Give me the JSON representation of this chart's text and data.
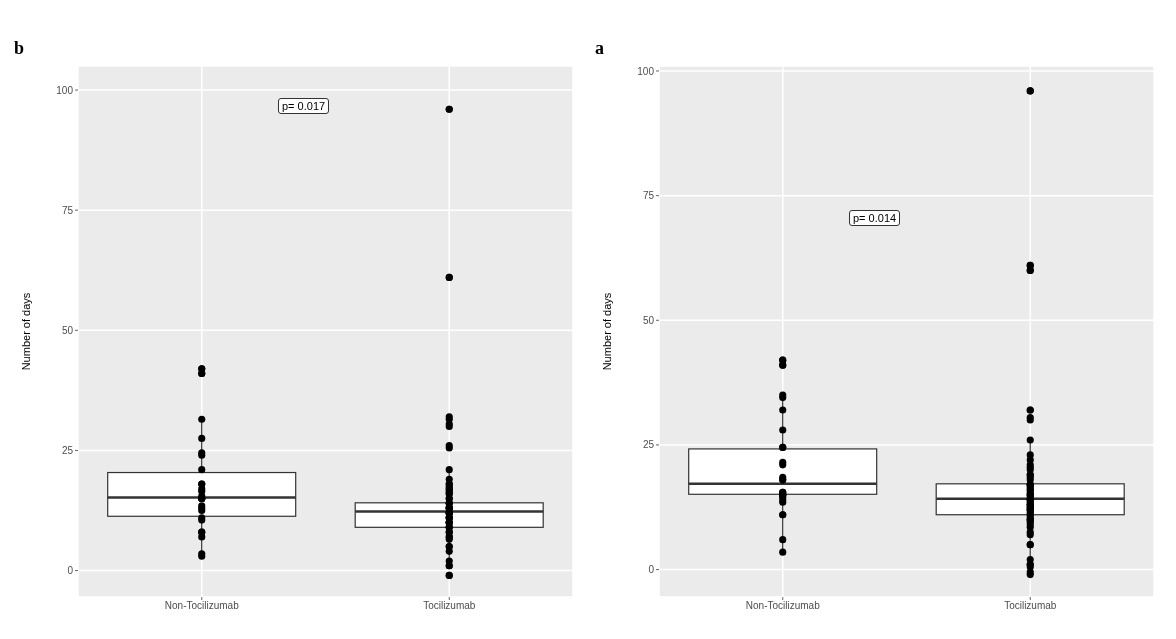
{
  "chart_data": [
    {
      "type": "box",
      "title": "b",
      "ylabel": "Number of days",
      "categories": [
        "Non-Tocilizumab",
        "Tocilizumab"
      ],
      "ylim": [
        -5.5,
        105
      ],
      "yticks": [
        0,
        25,
        50,
        75,
        100
      ],
      "grid": true,
      "annotations": [
        "p= 0.017"
      ],
      "series": [
        {
          "type": "scatter",
          "color": "#000000",
          "marker": "circle",
          "x": [
            "Non-Tocilizumab",
            "Non-Tocilizumab",
            "Non-Tocilizumab",
            "Non-Tocilizumab",
            "Non-Tocilizumab",
            "Non-Tocilizumab",
            "Non-Tocilizumab",
            "Non-Tocilizumab",
            "Non-Tocilizumab",
            "Non-Tocilizumab",
            "Non-Tocilizumab",
            "Non-Tocilizumab",
            "Non-Tocilizumab",
            "Non-Tocilizumab",
            "Non-Tocilizumab",
            "Non-Tocilizumab",
            "Non-Tocilizumab",
            "Non-Tocilizumab",
            "Non-Tocilizumab",
            "Non-Tocilizumab",
            "Non-Tocilizumab",
            "Non-Tocilizumab",
            "Non-Tocilizumab",
            "Non-Tocilizumab",
            "Non-Tocilizumab",
            "Non-Tocilizumab",
            "Non-Tocilizumab",
            "Non-Tocilizumab",
            "Tocilizumab",
            "Tocilizumab",
            "Tocilizumab",
            "Tocilizumab",
            "Tocilizumab",
            "Tocilizumab",
            "Tocilizumab",
            "Tocilizumab",
            "Tocilizumab",
            "Tocilizumab",
            "Tocilizumab",
            "Tocilizumab",
            "Tocilizumab",
            "Tocilizumab",
            "Tocilizumab",
            "Tocilizumab",
            "Tocilizumab",
            "Tocilizumab",
            "Tocilizumab",
            "Tocilizumab",
            "Tocilizumab",
            "Tocilizumab",
            "Tocilizumab",
            "Tocilizumab",
            "Tocilizumab",
            "Tocilizumab",
            "Tocilizumab",
            "Tocilizumab",
            "Tocilizumab",
            "Tocilizumab",
            "Tocilizumab",
            "Tocilizumab",
            "Tocilizumab",
            "Tocilizumab",
            "Tocilizumab",
            "Tocilizumab",
            "Tocilizumab",
            "Tocilizumab",
            "Tocilizumab",
            "Tocilizumab",
            "Tocilizumab",
            "Tocilizumab",
            "Tocilizumab",
            "Tocilizumab",
            "Tocilizumab",
            "Tocilizumab",
            "Tocilizumab",
            "Tocilizumab",
            "Tocilizumab",
            "Tocilizumab",
            "Tocilizumab",
            "Tocilizumab",
            "Tocilizumab",
            "Tocilizumab",
            "Tocilizumab",
            "Tocilizumab",
            "Tocilizumab",
            "Tocilizumab",
            "Tocilizumab"
          ],
          "values": [
            3,
            15,
            12.5,
            21,
            18,
            27.5,
            8,
            3.5,
            11,
            13.5,
            15.5,
            16.5,
            18,
            41,
            42,
            42,
            41,
            7,
            15,
            17,
            13,
            10.5,
            8,
            24.5,
            31.5,
            15,
            15,
            24,
            96,
            96,
            61,
            61,
            32,
            30.5,
            26,
            25.5,
            31.5,
            30,
            -1,
            -1,
            1,
            1,
            2,
            4,
            5,
            5,
            7,
            7,
            6.5,
            8,
            8,
            9,
            9,
            9,
            10,
            10,
            10,
            10,
            11,
            11,
            11,
            11,
            12,
            12,
            12,
            12,
            12,
            13,
            13,
            13,
            13,
            13,
            14,
            14,
            14,
            15,
            15,
            16,
            16,
            16.5,
            17,
            17,
            17.5,
            18,
            18,
            19,
            21
          ]
        },
        {
          "type": "box",
          "color": "#ffffff",
          "boxes": [
            {
              "low": 3,
              "q1": 11.3,
              "median": 15.2,
              "q3": 20.4,
              "high": 32
            },
            {
              "low": 2,
              "q1": 9,
              "median": 12.3,
              "q3": 14.1,
              "high": 21
            }
          ]
        }
      ]
    },
    {
      "type": "box",
      "title": "a",
      "ylabel": "Number of days",
      "categories": [
        "Non-Tocilizumab",
        "Tocilizumab"
      ],
      "ylim": [
        -5.5,
        101
      ],
      "yticks": [
        0,
        25,
        50,
        75,
        100
      ],
      "grid": true,
      "annotations": [
        "p= 0.014"
      ],
      "series": [
        {
          "type": "scatter",
          "color": "#000000",
          "marker": "circle",
          "x": [
            "Non-Tocilizumab",
            "Non-Tocilizumab",
            "Non-Tocilizumab",
            "Non-Tocilizumab",
            "Non-Tocilizumab",
            "Non-Tocilizumab",
            "Non-Tocilizumab",
            "Non-Tocilizumab",
            "Non-Tocilizumab",
            "Non-Tocilizumab",
            "Non-Tocilizumab",
            "Non-Tocilizumab",
            "Non-Tocilizumab",
            "Non-Tocilizumab",
            "Non-Tocilizumab",
            "Non-Tocilizumab",
            "Non-Tocilizumab",
            "Non-Tocilizumab",
            "Non-Tocilizumab",
            "Non-Tocilizumab",
            "Non-Tocilizumab",
            "Non-Tocilizumab",
            "Non-Tocilizumab",
            "Non-Tocilizumab",
            "Non-Tocilizumab",
            "Non-Tocilizumab",
            "Non-Tocilizumab",
            "Non-Tocilizumab",
            "Tocilizumab",
            "Tocilizumab",
            "Tocilizumab",
            "Tocilizumab",
            "Tocilizumab",
            "Tocilizumab",
            "Tocilizumab",
            "Tocilizumab",
            "Tocilizumab",
            "Tocilizumab",
            "Tocilizumab",
            "Tocilizumab",
            "Tocilizumab",
            "Tocilizumab",
            "Tocilizumab",
            "Tocilizumab",
            "Tocilizumab",
            "Tocilizumab",
            "Tocilizumab",
            "Tocilizumab",
            "Tocilizumab",
            "Tocilizumab",
            "Tocilizumab",
            "Tocilizumab",
            "Tocilizumab",
            "Tocilizumab",
            "Tocilizumab",
            "Tocilizumab",
            "Tocilizumab",
            "Tocilizumab",
            "Tocilizumab",
            "Tocilizumab",
            "Tocilizumab",
            "Tocilizumab",
            "Tocilizumab",
            "Tocilizumab",
            "Tocilizumab",
            "Tocilizumab",
            "Tocilizumab",
            "Tocilizumab",
            "Tocilizumab",
            "Tocilizumab",
            "Tocilizumab",
            "Tocilizumab",
            "Tocilizumab",
            "Tocilizumab",
            "Tocilizumab",
            "Tocilizumab",
            "Tocilizumab",
            "Tocilizumab",
            "Tocilizumab",
            "Tocilizumab",
            "Tocilizumab",
            "Tocilizumab",
            "Tocilizumab",
            "Tocilizumab",
            "Tocilizumab",
            "Tocilizumab",
            "Tocilizumab",
            "Tocilizumab",
            "Tocilizumab",
            "Tocilizumab",
            "Tocilizumab",
            "Tocilizumab"
          ],
          "values": [
            41,
            42,
            42,
            41,
            34.5,
            35,
            32,
            28,
            24.5,
            24.5,
            21.5,
            21,
            18.5,
            18,
            18,
            15,
            13.5,
            15,
            15.5,
            15,
            15,
            14.5,
            14,
            11,
            11,
            6,
            3.5,
            15.5,
            96,
            96,
            60,
            61,
            60,
            61,
            32,
            30.5,
            32,
            30,
            26,
            23,
            20.5,
            22,
            21,
            20,
            19,
            19,
            18.5,
            18,
            17,
            17,
            17,
            17,
            16.5,
            16,
            16,
            15.5,
            15,
            15,
            15,
            14.5,
            14,
            14,
            14,
            13.5,
            13,
            13,
            13,
            12.5,
            12.5,
            12,
            12,
            12,
            11.5,
            11,
            11,
            10.5,
            10,
            10,
            10,
            9.5,
            9,
            8.5,
            7.5,
            7,
            5,
            5,
            2,
            1,
            1,
            0.5,
            -0.5,
            -1
          ]
        },
        {
          "type": "box",
          "color": "#ffffff",
          "boxes": [
            {
              "low": 3.3,
              "q1": 15.1,
              "median": 17.2,
              "q3": 24.2,
              "high": 35
            },
            {
              "low": 2.5,
              "q1": 11,
              "median": 14.2,
              "q3": 17.2,
              "high": 26
            }
          ]
        }
      ]
    }
  ]
}
